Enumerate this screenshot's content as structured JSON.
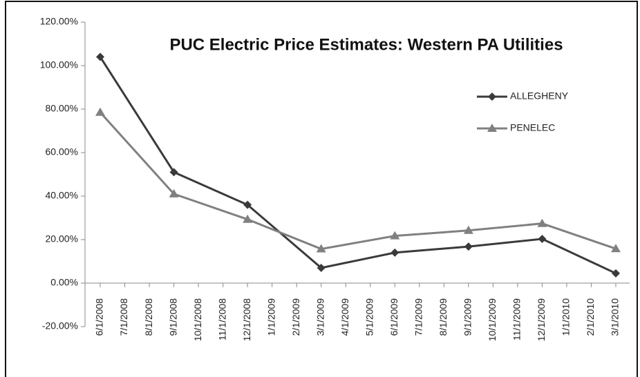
{
  "chart_data": {
    "type": "line",
    "title": "PUC Electric Price Estimates: Western PA Utilities",
    "x": [
      "6/1/2008",
      "9/1/2008",
      "12/1/2008",
      "3/1/2009",
      "6/1/2009",
      "9/1/2009",
      "12/1/2009",
      "3/1/2010"
    ],
    "xlim": [
      "6/1/2008",
      "3/1/2010"
    ],
    "xticks": [
      "6/1/2008",
      "7/1/2008",
      "8/1/2008",
      "9/1/2008",
      "10/1/2008",
      "11/1/2008",
      "12/1/2008",
      "1/1/2009",
      "2/1/2009",
      "3/1/2009",
      "4/1/2009",
      "5/1/2009",
      "6/1/2009",
      "7/1/2009",
      "8/1/2009",
      "9/1/2009",
      "10/1/2009",
      "11/1/2009",
      "12/1/2009",
      "1/1/2010",
      "2/1/2010",
      "3/1/2010"
    ],
    "series": [
      {
        "name": "ALLEGHENY",
        "color": "#3a3a3a",
        "marker": "diamond",
        "values": [
          104,
          51,
          36,
          7,
          14,
          16.8,
          20.3,
          4.5
        ]
      },
      {
        "name": "PENELEC",
        "color": "#808080",
        "marker": "triangle",
        "values": [
          78.5,
          41,
          29.3,
          15.7,
          21.7,
          24.2,
          27.4,
          15.8
        ]
      }
    ],
    "ylim": [
      -20,
      120
    ],
    "yticks": [
      {
        "value": 120,
        "label": "120.00%"
      },
      {
        "value": 100,
        "label": "100.00%"
      },
      {
        "value": 80,
        "label": "80.00%"
      },
      {
        "value": 60,
        "label": "60.00%"
      },
      {
        "value": 40,
        "label": "40.00%"
      },
      {
        "value": 20,
        "label": "20.00%"
      },
      {
        "value": 0,
        "label": "0.00%"
      },
      {
        "value": -20,
        "label": "-20.00%"
      }
    ],
    "legend": "upper right",
    "grid": false
  }
}
